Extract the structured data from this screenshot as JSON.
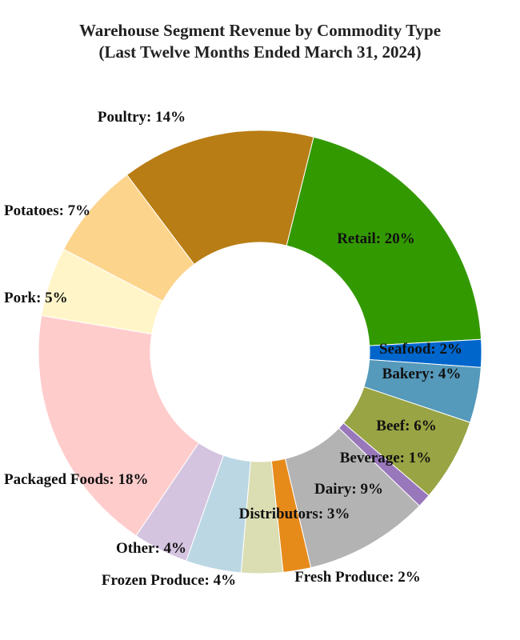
{
  "chart_data": {
    "type": "pie",
    "donut": true,
    "title": "Warehouse Segment Revenue by Commodity Type",
    "subtitle": "(Last Twelve Months Ended March 31, 2024)",
    "slices": [
      {
        "label": "Retail: 20%",
        "name": "Retail",
        "value": 20,
        "color": "#339900"
      },
      {
        "label": "Seafood: 2%",
        "name": "Seafood",
        "value": 2,
        "color": "#0066cc"
      },
      {
        "label": "Bakery: 4%",
        "name": "Bakery",
        "value": 4,
        "color": "#5599bb"
      },
      {
        "label": "Beef: 6%",
        "name": "Beef",
        "value": 6,
        "color": "#99a444"
      },
      {
        "label": "Beverage: 1%",
        "name": "Beverage",
        "value": 1,
        "color": "#9977bb"
      },
      {
        "label": "Dairy: 9%",
        "name": "Dairy",
        "value": 9,
        "color": "#b3b3b3"
      },
      {
        "label": "Fresh Produce: 2%",
        "name": "Fresh Produce",
        "value": 2,
        "color": "#e68a1a"
      },
      {
        "label": "Distributors: 3%",
        "name": "Distributors",
        "value": 3,
        "color": "#dbddb3"
      },
      {
        "label": "Frozen Produce: 4%",
        "name": "Frozen Produce",
        "value": 4,
        "color": "#bbd7e4"
      },
      {
        "label": "Other: 4%",
        "name": "Other",
        "value": 4,
        "color": "#d4c4e0"
      },
      {
        "label": "Packaged Foods: 18%",
        "name": "Packaged Foods",
        "value": 18,
        "color": "#ffcccc"
      },
      {
        "label": "Pork: 5%",
        "name": "Pork",
        "value": 5,
        "color": "#fff5c8"
      },
      {
        "label": "Potatoes: 7%",
        "name": "Potatoes",
        "value": 7,
        "color": "#fdd48c"
      },
      {
        "label": "Poultry: 14%",
        "name": "Poultry",
        "value": 14,
        "color": "#b87d14"
      }
    ]
  }
}
